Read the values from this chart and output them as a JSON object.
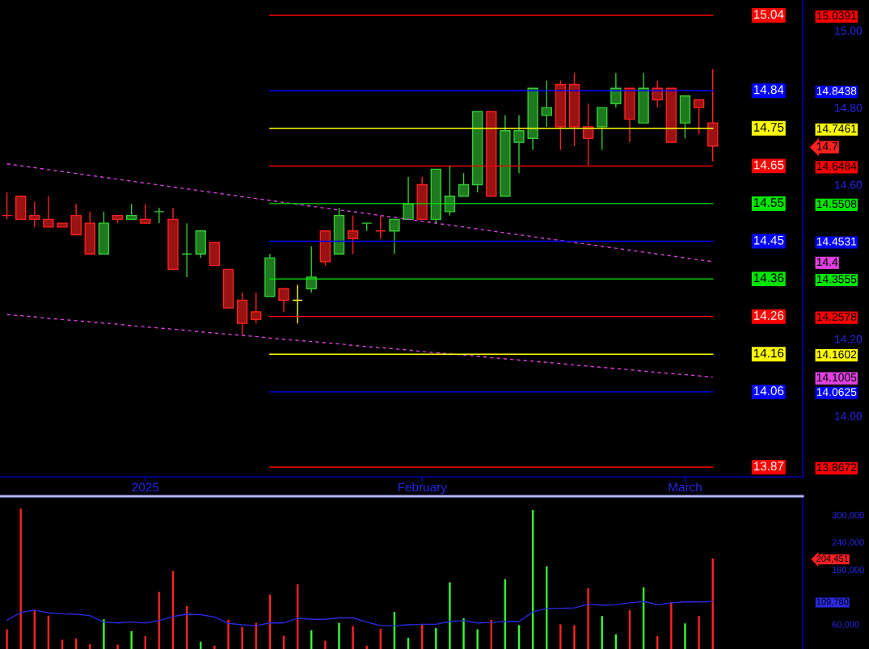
{
  "chart_data": [
    {
      "type": "candlestick",
      "categories": [
        null,
        null,
        null,
        null,
        null,
        null,
        null,
        null,
        null,
        null,
        "2025",
        null,
        null,
        null,
        null,
        null,
        null,
        null,
        null,
        null,
        null,
        null,
        null,
        null,
        null,
        null,
        null,
        null,
        null,
        null,
        "February",
        null,
        null,
        null,
        null,
        null,
        null,
        null,
        null,
        null,
        null,
        null,
        null,
        null,
        null,
        null,
        null,
        null,
        null,
        "March",
        null,
        null,
        null,
        null,
        null,
        null,
        null,
        null
      ],
      "ohlc": [
        [
          14.52,
          14.58,
          14.51,
          14.52
        ],
        [
          14.57,
          14.57,
          14.51,
          14.51
        ],
        [
          14.52,
          14.555,
          14.49,
          14.51
        ],
        [
          14.51,
          14.57,
          14.49,
          14.49
        ],
        [
          14.5,
          14.5,
          14.49,
          14.49
        ],
        [
          14.52,
          14.55,
          14.47,
          14.47
        ],
        [
          14.5,
          14.53,
          14.42,
          14.42
        ],
        [
          14.42,
          14.53,
          14.42,
          14.5
        ],
        [
          14.52,
          14.52,
          14.5,
          14.51
        ],
        [
          14.51,
          14.55,
          14.51,
          14.52
        ],
        [
          14.51,
          14.55,
          14.5,
          14.5
        ],
        [
          14.53,
          14.54,
          14.5,
          14.53
        ],
        [
          14.51,
          14.54,
          14.38,
          14.38
        ],
        [
          14.42,
          14.5,
          14.36,
          14.42
        ],
        [
          14.42,
          14.48,
          14.41,
          14.48
        ],
        [
          14.45,
          14.45,
          14.39,
          14.39
        ],
        [
          14.38,
          14.38,
          14.28,
          14.28
        ],
        [
          14.3,
          14.32,
          14.21,
          14.24
        ],
        [
          14.27,
          14.32,
          14.24,
          14.25
        ],
        [
          14.31,
          14.42,
          14.31,
          14.41
        ],
        [
          14.33,
          14.33,
          14.27,
          14.3
        ],
        [
          14.3,
          14.34,
          14.24,
          14.3
        ],
        [
          14.33,
          14.44,
          14.32,
          14.36
        ],
        [
          14.48,
          14.48,
          14.39,
          14.4
        ],
        [
          14.42,
          14.54,
          14.42,
          14.52
        ],
        [
          14.48,
          14.52,
          14.42,
          14.46
        ],
        [
          14.5,
          14.5,
          14.48,
          14.5
        ],
        [
          14.48,
          14.52,
          14.46,
          14.48
        ],
        [
          14.48,
          14.51,
          14.42,
          14.51
        ],
        [
          14.51,
          14.62,
          14.51,
          14.55
        ],
        [
          14.6,
          14.62,
          14.51,
          14.51
        ],
        [
          14.51,
          14.64,
          14.5,
          14.64
        ],
        [
          14.53,
          14.65,
          14.52,
          14.57
        ],
        [
          14.57,
          14.63,
          14.57,
          14.6
        ],
        [
          14.6,
          14.79,
          14.58,
          14.79
        ],
        [
          14.79,
          14.79,
          14.57,
          14.57
        ],
        [
          14.57,
          14.78,
          14.57,
          14.74
        ],
        [
          14.71,
          14.78,
          14.63,
          14.74
        ],
        [
          14.72,
          14.85,
          14.69,
          14.85
        ],
        [
          14.78,
          14.87,
          14.75,
          14.8
        ],
        [
          14.86,
          14.87,
          14.69,
          14.75
        ],
        [
          14.86,
          14.89,
          14.7,
          14.75
        ],
        [
          14.75,
          14.81,
          14.65,
          14.72
        ],
        [
          14.75,
          14.8,
          14.69,
          14.8
        ],
        [
          14.81,
          14.89,
          14.8,
          14.85
        ],
        [
          14.85,
          14.85,
          14.71,
          14.77
        ],
        [
          14.76,
          14.89,
          14.76,
          14.85
        ],
        [
          14.85,
          14.87,
          14.8,
          14.82
        ],
        [
          14.85,
          14.85,
          14.71,
          14.71
        ],
        [
          14.76,
          14.83,
          14.72,
          14.83
        ],
        [
          14.82,
          14.82,
          14.73,
          14.8
        ],
        [
          14.76,
          14.9,
          14.66,
          14.7
        ],
        null,
        null,
        null,
        null,
        null,
        null
      ],
      "colors": [
        "#ff2020",
        "#ff2020",
        "#ff2020",
        "#ff2020",
        "#ff2020",
        "#ff2020",
        "#ff2020",
        "#33cc33",
        "#ff2020",
        "#33cc33",
        "#ff2020",
        "#33cc33",
        "#ff2020",
        "#33cc33",
        "#33cc33",
        "#ff2020",
        "#ff2020",
        "#ff2020",
        "#ff2020",
        "#33cc33",
        "#ff2020",
        "#ffff33",
        "#33cc33",
        "#ff2020",
        "#33cc33",
        "#ff2020",
        "#33cc33",
        "#ff2020",
        "#33cc33",
        "#33cc33",
        "#ff2020",
        "#33cc33",
        "#33cc33",
        "#33cc33",
        "#33cc33",
        "#ff2020",
        "#33cc33",
        "#33cc33",
        "#33cc33",
        "#33cc33",
        "#ff2020",
        "#ff2020",
        "#ff2020",
        "#33cc33",
        "#33cc33",
        "#ff2020",
        "#33cc33",
        "#ff2020",
        "#ff2020",
        "#33cc33",
        "#ff2020",
        "#ff2020",
        null,
        null,
        null,
        null,
        null,
        null
      ],
      "series": [
        {
          "type": "line",
          "color": "#e040e0",
          "line_style": "dashed",
          "values": [
            14.654,
            14.649,
            14.644,
            14.639,
            14.634,
            14.629,
            14.624,
            14.619,
            14.614,
            14.609,
            14.604,
            14.599,
            14.594,
            14.589,
            14.584,
            14.579,
            14.574,
            14.569,
            14.564,
            14.559,
            14.554,
            14.549,
            14.544,
            14.539,
            14.534,
            14.53,
            14.525,
            14.52,
            14.515,
            14.51,
            14.505,
            14.5,
            14.495,
            14.49,
            14.485,
            14.48,
            14.475,
            14.47,
            14.465,
            14.46,
            14.455,
            14.45,
            14.445,
            14.44,
            14.435,
            14.43,
            14.425,
            14.42,
            14.415,
            14.41,
            14.405,
            14.4,
            null,
            null,
            null,
            null,
            null,
            null
          ]
        },
        {
          "type": "line",
          "color": "#e040e0",
          "line_style": "dashed",
          "values": [
            14.263,
            14.26,
            14.257,
            14.253,
            14.25,
            14.247,
            14.244,
            14.241,
            14.238,
            14.234,
            14.231,
            14.228,
            14.225,
            14.222,
            14.218,
            14.215,
            14.212,
            14.209,
            14.206,
            14.202,
            14.199,
            14.196,
            14.193,
            14.19,
            14.187,
            14.183,
            14.18,
            14.177,
            14.174,
            14.171,
            14.167,
            14.164,
            14.161,
            14.158,
            14.155,
            14.151,
            14.148,
            14.145,
            14.142,
            14.139,
            14.136,
            14.132,
            14.129,
            14.126,
            14.123,
            14.12,
            14.116,
            14.113,
            14.11,
            14.107,
            14.104,
            14.1005,
            null,
            null,
            null,
            null,
            null,
            null
          ]
        },
        {
          "type": "line",
          "name": "15.04",
          "color": "#ff0000",
          "values": [
            null,
            null,
            null,
            null,
            null,
            null,
            null,
            null,
            null,
            null,
            null,
            null,
            null,
            null,
            null,
            null,
            null,
            null,
            null,
            15.0391,
            15.0391,
            15.0391,
            15.0391,
            15.0391,
            15.0391,
            15.0391,
            15.0391,
            15.0391,
            15.0391,
            15.0391,
            15.0391,
            15.0391,
            15.0391,
            15.0391,
            15.0391,
            15.0391,
            15.0391,
            15.0391,
            15.0391,
            15.0391,
            15.0391,
            15.0391,
            15.0391,
            15.0391,
            15.0391,
            15.0391,
            15.0391,
            15.0391,
            15.0391,
            15.0391,
            15.0391,
            15.0391,
            null,
            null,
            null,
            null,
            null,
            null
          ]
        },
        {
          "type": "line",
          "name": "14.84",
          "color": "#0000ff",
          "values": [
            null,
            null,
            null,
            null,
            null,
            null,
            null,
            null,
            null,
            null,
            null,
            null,
            null,
            null,
            null,
            null,
            null,
            null,
            null,
            14.8438,
            14.8438,
            14.8438,
            14.8438,
            14.8438,
            14.8438,
            14.8438,
            14.8438,
            14.8438,
            14.8438,
            14.8438,
            14.8438,
            14.8438,
            14.8438,
            14.8438,
            14.8438,
            14.8438,
            14.8438,
            14.8438,
            14.8438,
            14.8438,
            14.8438,
            14.8438,
            14.8438,
            14.8438,
            14.8438,
            14.8438,
            14.8438,
            14.8438,
            14.8438,
            14.8438,
            14.8438,
            14.8438,
            null,
            null,
            null,
            null,
            null,
            null
          ]
        },
        {
          "type": "line",
          "name": "14.75",
          "color": "#ffff00",
          "values": [
            null,
            null,
            null,
            null,
            null,
            null,
            null,
            null,
            null,
            null,
            null,
            null,
            null,
            null,
            null,
            null,
            null,
            null,
            null,
            14.7461,
            14.7461,
            14.7461,
            14.7461,
            14.7461,
            14.7461,
            14.7461,
            14.7461,
            14.7461,
            14.7461,
            14.7461,
            14.7461,
            14.7461,
            14.7461,
            14.7461,
            14.7461,
            14.7461,
            14.7461,
            14.7461,
            14.7461,
            14.7461,
            14.7461,
            14.7461,
            14.7461,
            14.7461,
            14.7461,
            14.7461,
            14.7461,
            14.7461,
            14.7461,
            14.7461,
            14.7461,
            14.7461,
            null,
            null,
            null,
            null,
            null,
            null
          ]
        },
        {
          "type": "line",
          "name": "14.65",
          "color": "#ff0000",
          "values": [
            null,
            null,
            null,
            null,
            null,
            null,
            null,
            null,
            null,
            null,
            null,
            null,
            null,
            null,
            null,
            null,
            null,
            null,
            null,
            14.6484,
            14.6484,
            14.6484,
            14.6484,
            14.6484,
            14.6484,
            14.6484,
            14.6484,
            14.6484,
            14.6484,
            14.6484,
            14.6484,
            14.6484,
            14.6484,
            14.6484,
            14.6484,
            14.6484,
            14.6484,
            14.6484,
            14.6484,
            14.6484,
            14.6484,
            14.6484,
            14.6484,
            14.6484,
            14.6484,
            14.6484,
            14.6484,
            14.6484,
            14.6484,
            14.6484,
            14.6484,
            14.6484,
            null,
            null,
            null,
            null,
            null,
            null
          ]
        },
        {
          "type": "line",
          "name": "14.55",
          "color": "#00e600",
          "values": [
            null,
            null,
            null,
            null,
            null,
            null,
            null,
            null,
            null,
            null,
            null,
            null,
            null,
            null,
            null,
            null,
            null,
            null,
            null,
            14.5508,
            14.5508,
            14.5508,
            14.5508,
            14.5508,
            14.5508,
            14.5508,
            14.5508,
            14.5508,
            14.5508,
            14.5508,
            14.5508,
            14.5508,
            14.5508,
            14.5508,
            14.5508,
            14.5508,
            14.5508,
            14.5508,
            14.5508,
            14.5508,
            14.5508,
            14.5508,
            14.5508,
            14.5508,
            14.5508,
            14.5508,
            14.5508,
            14.5508,
            14.5508,
            14.5508,
            14.5508,
            14.5508,
            null,
            null,
            null,
            null,
            null,
            null
          ]
        },
        {
          "type": "line",
          "name": "14.45",
          "color": "#0000ff",
          "values": [
            null,
            null,
            null,
            null,
            null,
            null,
            null,
            null,
            null,
            null,
            null,
            null,
            null,
            null,
            null,
            null,
            null,
            null,
            null,
            14.4531,
            14.4531,
            14.4531,
            14.4531,
            14.4531,
            14.4531,
            14.4531,
            14.4531,
            14.4531,
            14.4531,
            14.4531,
            14.4531,
            14.4531,
            14.4531,
            14.4531,
            14.4531,
            14.4531,
            14.4531,
            14.4531,
            14.4531,
            14.4531,
            14.4531,
            14.4531,
            14.4531,
            14.4531,
            14.4531,
            14.4531,
            14.4531,
            14.4531,
            14.4531,
            14.4531,
            14.4531,
            14.4531,
            null,
            null,
            null,
            null,
            null,
            null
          ]
        },
        {
          "type": "line",
          "name": "14.36",
          "color": "#00e600",
          "values": [
            null,
            null,
            null,
            null,
            null,
            null,
            null,
            null,
            null,
            null,
            null,
            null,
            null,
            null,
            null,
            null,
            null,
            null,
            null,
            14.3555,
            14.3555,
            14.3555,
            14.3555,
            14.3555,
            14.3555,
            14.3555,
            14.3555,
            14.3555,
            14.3555,
            14.3555,
            14.3555,
            14.3555,
            14.3555,
            14.3555,
            14.3555,
            14.3555,
            14.3555,
            14.3555,
            14.3555,
            14.3555,
            14.3555,
            14.3555,
            14.3555,
            14.3555,
            14.3555,
            14.3555,
            14.3555,
            14.3555,
            14.3555,
            14.3555,
            14.3555,
            14.3555,
            null,
            null,
            null,
            null,
            null,
            null
          ]
        },
        {
          "type": "line",
          "name": "14.26",
          "color": "#ff0000",
          "values": [
            null,
            null,
            null,
            null,
            null,
            null,
            null,
            null,
            null,
            null,
            null,
            null,
            null,
            null,
            null,
            null,
            null,
            null,
            null,
            14.2578,
            14.2578,
            14.2578,
            14.2578,
            14.2578,
            14.2578,
            14.2578,
            14.2578,
            14.2578,
            14.2578,
            14.2578,
            14.2578,
            14.2578,
            14.2578,
            14.2578,
            14.2578,
            14.2578,
            14.2578,
            14.2578,
            14.2578,
            14.2578,
            14.2578,
            14.2578,
            14.2578,
            14.2578,
            14.2578,
            14.2578,
            14.2578,
            14.2578,
            14.2578,
            14.2578,
            14.2578,
            14.2578,
            null,
            null,
            null,
            null,
            null,
            null
          ]
        },
        {
          "type": "line",
          "name": "14.16",
          "color": "#ffff00",
          "values": [
            null,
            null,
            null,
            null,
            null,
            null,
            null,
            null,
            null,
            null,
            null,
            null,
            null,
            null,
            null,
            null,
            null,
            null,
            null,
            14.1602,
            14.1602,
            14.1602,
            14.1602,
            14.1602,
            14.1602,
            14.1602,
            14.1602,
            14.1602,
            14.1602,
            14.1602,
            14.1602,
            14.1602,
            14.1602,
            14.1602,
            14.1602,
            14.1602,
            14.1602,
            14.1602,
            14.1602,
            14.1602,
            14.1602,
            14.1602,
            14.1602,
            14.1602,
            14.1602,
            14.1602,
            14.1602,
            14.1602,
            14.1602,
            14.1602,
            14.1602,
            14.1602,
            null,
            null,
            null,
            null,
            null,
            null
          ]
        },
        {
          "type": "line",
          "name": "14.06",
          "color": "#0000ff",
          "values": [
            null,
            null,
            null,
            null,
            null,
            null,
            null,
            null,
            null,
            null,
            null,
            null,
            null,
            null,
            null,
            null,
            null,
            null,
            null,
            14.0625,
            14.0625,
            14.0625,
            14.0625,
            14.0625,
            14.0625,
            14.0625,
            14.0625,
            14.0625,
            14.0625,
            14.0625,
            14.0625,
            14.0625,
            14.0625,
            14.0625,
            14.0625,
            14.0625,
            14.0625,
            14.0625,
            14.0625,
            14.0625,
            14.0625,
            14.0625,
            14.0625,
            14.0625,
            14.0625,
            14.0625,
            14.0625,
            14.0625,
            14.0625,
            14.0625,
            14.0625,
            14.0625,
            null,
            null,
            null,
            null,
            null,
            null
          ]
        },
        {
          "type": "line",
          "name": "13.87",
          "color": "#ff0000",
          "values": [
            null,
            null,
            null,
            null,
            null,
            null,
            null,
            null,
            null,
            null,
            null,
            null,
            null,
            null,
            null,
            null,
            null,
            null,
            null,
            13.8672,
            13.8672,
            13.8672,
            13.8672,
            13.8672,
            13.8672,
            13.8672,
            13.8672,
            13.8672,
            13.8672,
            13.8672,
            13.8672,
            13.8672,
            13.8672,
            13.8672,
            13.8672,
            13.8672,
            13.8672,
            13.8672,
            13.8672,
            13.8672,
            13.8672,
            13.8672,
            13.8672,
            13.8672,
            13.8672,
            13.8672,
            13.8672,
            13.8672,
            13.8672,
            13.8672,
            13.8672,
            13.8672,
            null,
            null,
            null,
            null,
            null,
            null
          ]
        }
      ],
      "ylim": [
        13.842,
        15.079
      ],
      "yticks": [
        {
          "value": 15.0,
          "label": "15.00"
        },
        {
          "value": 14.8,
          "label": "14.80"
        },
        {
          "value": 14.6,
          "label": "14.60"
        },
        {
          "value": 14.2,
          "label": "14.20"
        },
        {
          "value": 14.0,
          "label": "14.00"
        }
      ],
      "y2lim": [
        13.842,
        15.079
      ],
      "y2ticks": [
        {
          "value": 15.0391,
          "label": "15.0391"
        },
        {
          "value": 14.8438,
          "label": "14.8438"
        },
        {
          "value": 14.7461,
          "label": "14.7461"
        },
        {
          "value": 14.7,
          "label": "14.7"
        },
        {
          "value": 14.6484,
          "label": "14.6484"
        },
        {
          "value": 14.5508,
          "label": "14.5508"
        },
        {
          "value": 14.4531,
          "label": "14.4531"
        },
        {
          "value": 14.4,
          "label": "14.4"
        },
        {
          "value": 14.3555,
          "label": "14.3555"
        },
        {
          "value": 14.2578,
          "label": "14.2578"
        },
        {
          "value": 14.1602,
          "label": "14.1602"
        },
        {
          "value": 14.1005,
          "label": "14.1005"
        },
        {
          "value": 14.0625,
          "label": "14.0625"
        },
        {
          "value": 13.8672,
          "label": "13.8672"
        }
      ]
    },
    {
      "type": "bar",
      "categories": [
        null,
        null,
        null,
        null,
        null,
        null,
        null,
        null,
        null,
        null,
        null,
        null,
        null,
        null,
        null,
        null,
        null,
        null,
        null,
        null,
        null,
        null,
        null,
        null,
        null,
        null,
        null,
        null,
        null,
        null,
        null,
        null,
        null,
        null,
        null,
        null,
        null,
        null,
        null,
        null,
        null,
        null,
        null,
        null,
        null,
        null,
        null,
        null,
        null,
        null,
        null,
        null,
        null,
        null,
        null,
        null,
        null,
        null
      ],
      "series": [
        {
          "type": "bar",
          "values": [
            49000,
            314000,
            92000,
            79000,
            26000,
            29000,
            16000,
            71000,
            15000,
            45000,
            34000,
            131000,
            177000,
            100000,
            22000,
            13000,
            70000,
            54000,
            63000,
            125000,
            35000,
            148000,
            47000,
            24000,
            63000,
            56000,
            13000,
            50000,
            87000,
            30000,
            60000,
            52000,
            152000,
            73000,
            49000,
            70000,
            159000,
            58000,
            311000,
            187000,
            60000,
            58000,
            139000,
            78000,
            38000,
            91000,
            141000,
            34000,
            109000,
            62000,
            78000,
            204451,
            null,
            null,
            null,
            null,
            null,
            null
          ],
          "colors": [
            "#ff2222",
            "#ff2222",
            "#ff2222",
            "#ff2222",
            "#ff2222",
            "#ff2222",
            "#ff2222",
            "#33ff33",
            "#ff2222",
            "#33ff33",
            "#ff2222",
            "#ff2222",
            "#ff2222",
            "#ff2222",
            "#33ff33",
            "#ff2222",
            "#ff2222",
            "#ff2222",
            "#ff2222",
            "#ff2222",
            "#ff2222",
            "#ff2222",
            "#33ff33",
            "#ff2222",
            "#33ff33",
            "#ff2222",
            "#ff2222",
            "#ff2222",
            "#33ff33",
            "#33ff33",
            "#ff2222",
            "#33ff33",
            "#33ff33",
            "#33ff33",
            "#33ff33",
            "#ff2222",
            "#33ff33",
            "#33ff33",
            "#33ff33",
            "#33ff33",
            "#ff2222",
            "#ff2222",
            "#ff2222",
            "#33ff33",
            "#33ff33",
            "#ff2222",
            "#33ff33",
            "#ff2222",
            "#ff2222",
            "#33ff33",
            "#ff2222",
            "#ff2222",
            null,
            null,
            null,
            null,
            null,
            null
          ]
        },
        {
          "type": "line",
          "color": "#2a2ae0",
          "values": [
            69000,
            86000,
            91000,
            85000,
            83000,
            82000,
            79000,
            65000,
            63000,
            65000,
            63000,
            68000,
            77000,
            82000,
            81000,
            76000,
            62000,
            59000,
            57000,
            63000,
            63000,
            73000,
            71000,
            71000,
            74000,
            74000,
            65000,
            57000,
            57000,
            59000,
            60000,
            60000,
            66000,
            68000,
            63000,
            64000,
            66000,
            66000,
            87000,
            95000,
            95000,
            96000,
            104000,
            102000,
            103000,
            107000,
            110000,
            103000,
            107000,
            109000,
            109000,
            109780,
            null,
            null,
            null,
            null,
            null,
            null
          ]
        }
      ],
      "ylim": [
        5700,
        341000
      ],
      "yticks": [
        {
          "value": 60000,
          "label": "60,000"
        },
        {
          "value": 180000,
          "label": "180,000"
        },
        {
          "value": 240000,
          "label": "240,000"
        },
        {
          "value": 300000,
          "label": "300,000"
        }
      ],
      "y2lim": [
        5700,
        341000
      ],
      "y2ticks": [
        {
          "value": 204451,
          "label": "204,451"
        },
        {
          "value": 109780,
          "label": "109,780"
        }
      ]
    }
  ]
}
